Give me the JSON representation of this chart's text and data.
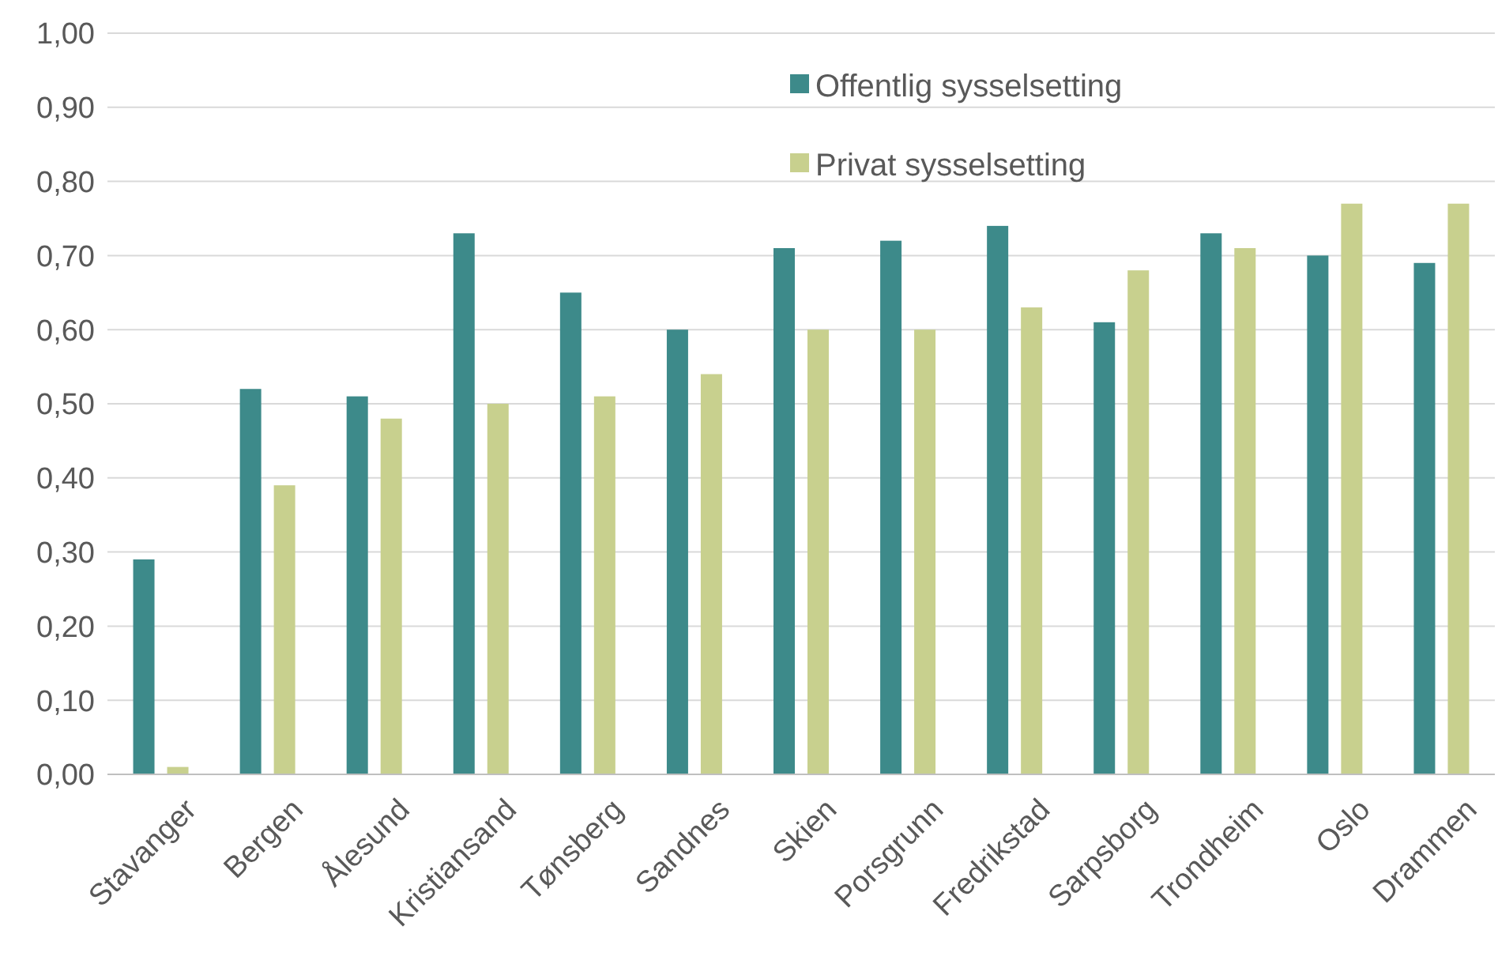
{
  "chart_data": {
    "type": "bar",
    "categories": [
      "Stavanger",
      "Bergen",
      "Ålesund",
      "Kristiansand",
      "Tønsberg",
      "Sandnes",
      "Skien",
      "Porsgrunn",
      "Fredrikstad",
      "Sarpsborg",
      "Trondheim",
      "Oslo",
      "Drammen"
    ],
    "series": [
      {
        "name": "Offentlig sysselsetting",
        "color": "#3d8a8a",
        "values": [
          0.29,
          0.52,
          0.51,
          0.73,
          0.65,
          0.6,
          0.71,
          0.72,
          0.74,
          0.61,
          0.73,
          0.7,
          0.69
        ]
      },
      {
        "name": "Privat sysselsetting",
        "color": "#c8d08e",
        "values": [
          0.01,
          0.39,
          0.48,
          0.5,
          0.51,
          0.54,
          0.6,
          0.6,
          0.63,
          0.68,
          0.71,
          0.77,
          0.77
        ]
      }
    ],
    "ylim": [
      0,
      1
    ],
    "yticks": [
      {
        "value": 0,
        "label": "0,00"
      },
      {
        "value": 0.1,
        "label": "0,10"
      },
      {
        "value": 0.2,
        "label": "0,20"
      },
      {
        "value": 0.3,
        "label": "0,30"
      },
      {
        "value": 0.4,
        "label": "0,40"
      },
      {
        "value": 0.5,
        "label": "0,50"
      },
      {
        "value": 0.6,
        "label": "0,60"
      },
      {
        "value": 0.7,
        "label": "0,70"
      },
      {
        "value": 0.8,
        "label": "0,80"
      },
      {
        "value": 0.9,
        "label": "0,90"
      },
      {
        "value": 1,
        "label": "1,00"
      }
    ],
    "grid": "y",
    "legend": "top right"
  }
}
